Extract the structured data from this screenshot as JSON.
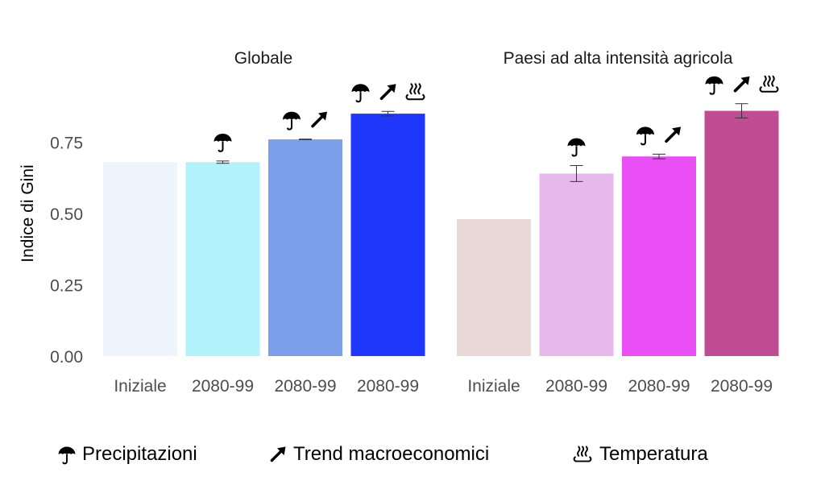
{
  "chart_data": {
    "type": "bar",
    "ylabel": "Indice di Gini",
    "ylim": [
      0,
      0.9
    ],
    "yticks": [
      "0.00",
      "0.25",
      "0.50",
      "0.75"
    ],
    "ytick_values": [
      0,
      0.25,
      0.5,
      0.75
    ],
    "grid": false,
    "panels": [
      {
        "title": "Globale",
        "categories": [
          "Iniziale",
          "2080-99",
          "2080-99",
          "2080-99"
        ],
        "values": [
          0.68,
          0.68,
          0.76,
          0.85
        ],
        "errors": [
          null,
          0.004,
          0.001,
          0.008
        ],
        "colors": [
          "#eef5fd",
          "#b2f2fa",
          "#7b9fe8",
          "#1f37fa"
        ],
        "icons": [
          [],
          [
            "umbrella"
          ],
          [
            "umbrella",
            "arrow"
          ],
          [
            "umbrella",
            "arrow",
            "heat"
          ]
        ]
      },
      {
        "title": "Paesi ad alta intensità agricola",
        "categories": [
          "Iniziale",
          "2080-99",
          "2080-99",
          "2080-99"
        ],
        "values": [
          0.48,
          0.64,
          0.7,
          0.86
        ],
        "errors": [
          null,
          0.028,
          0.008,
          0.025
        ],
        "colors": [
          "#e9d9d6",
          "#e6b8ec",
          "#e94ff5",
          "#c04d93"
        ],
        "icons": [
          [],
          [
            "umbrella"
          ],
          [
            "umbrella",
            "arrow"
          ],
          [
            "umbrella",
            "arrow",
            "heat"
          ]
        ]
      }
    ]
  },
  "legend": [
    {
      "icon": "umbrella",
      "label": "Precipitazioni"
    },
    {
      "icon": "arrow",
      "label": "Trend macroeconomici"
    },
    {
      "icon": "heat",
      "label": "Temperatura"
    }
  ]
}
